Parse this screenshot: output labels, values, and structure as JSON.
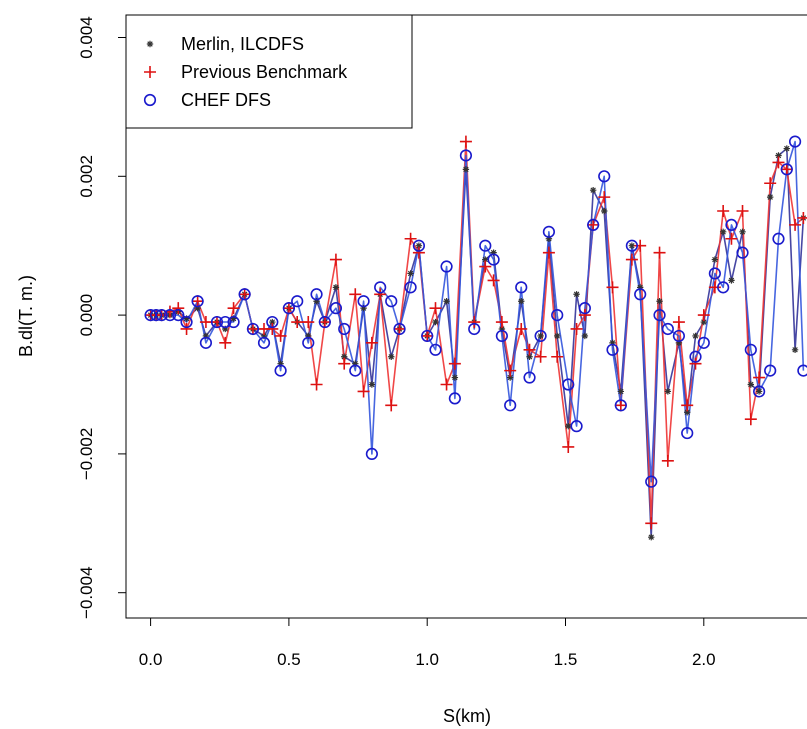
{
  "chart_data": {
    "type": "line",
    "xlabel": "S(km)",
    "ylabel": "B.dl(T. m.)",
    "xlim": [
      -0.05,
      2.37
    ],
    "ylim": [
      -0.0043,
      0.0042
    ],
    "x_ticks": [
      "0.0",
      "0.5",
      "1.0",
      "1.5",
      "2.0"
    ],
    "x_tick_values": [
      0.0,
      0.5,
      1.0,
      1.5,
      2.0
    ],
    "y_ticks": [
      "0.004",
      "0.002",
      "0.000",
      "−0.002",
      "−0.004"
    ],
    "y_tick_values": [
      0.004,
      0.002,
      0.0,
      -0.002,
      -0.004
    ],
    "legend_position": "top-left",
    "series": [
      {
        "name": "Merlin, ILCDFS",
        "marker": "star",
        "color": "#333333",
        "line_color": "#333399",
        "x": [
          0.0,
          0.02,
          0.04,
          0.07,
          0.1,
          0.13,
          0.17,
          0.2,
          0.24,
          0.27,
          0.3,
          0.34,
          0.37,
          0.41,
          0.44,
          0.47,
          0.5,
          0.53,
          0.57,
          0.6,
          0.63,
          0.67,
          0.7,
          0.74,
          0.77,
          0.8,
          0.83,
          0.87,
          0.9,
          0.94,
          0.97,
          1.0,
          1.03,
          1.07,
          1.1,
          1.14,
          1.17,
          1.21,
          1.24,
          1.27,
          1.3,
          1.34,
          1.37,
          1.41,
          1.44,
          1.47,
          1.51,
          1.54,
          1.57,
          1.6,
          1.64,
          1.67,
          1.7,
          1.74,
          1.77,
          1.81,
          1.84,
          1.87,
          1.91,
          1.94,
          1.97,
          2.0,
          2.04,
          2.07,
          2.1,
          2.14,
          2.17,
          2.2,
          2.24,
          2.27,
          2.3,
          2.33,
          2.36
        ],
        "y": [
          0.0,
          0.0,
          0.0,
          0.0,
          5e-05,
          -5e-05,
          0.0001,
          -0.0003,
          -0.0001,
          -0.0002,
          -5e-05,
          0.0003,
          -0.0002,
          -0.0003,
          -0.0001,
          -0.0007,
          0.0001,
          -0.0001,
          -0.0003,
          0.0002,
          -0.0001,
          0.0004,
          -0.0006,
          -0.0007,
          0.0001,
          -0.001,
          0.0003,
          -0.0006,
          -0.0002,
          0.0006,
          0.001,
          -0.0003,
          -0.0001,
          0.0002,
          -0.0009,
          0.0021,
          -0.0001,
          0.0008,
          0.0009,
          -0.0002,
          -0.0009,
          0.0002,
          -0.0006,
          -0.0003,
          0.0011,
          -0.0003,
          -0.0016,
          0.0003,
          -0.0003,
          0.0018,
          0.0015,
          -0.0004,
          -0.0011,
          0.001,
          0.0004,
          -0.0032,
          0.0002,
          -0.0011,
          -0.0004,
          -0.0014,
          -0.0003,
          -0.0001,
          0.0008,
          0.0012,
          0.0005,
          0.0012,
          -0.001,
          -0.0011,
          0.0017,
          0.0023,
          0.0024,
          -0.0005,
          0.0014
        ]
      },
      {
        "name": "Previous Benchmark",
        "marker": "plus",
        "color": "#dd1111",
        "line_color": "#ee3333",
        "x": [
          0.0,
          0.02,
          0.04,
          0.07,
          0.1,
          0.13,
          0.17,
          0.2,
          0.24,
          0.27,
          0.3,
          0.34,
          0.37,
          0.41,
          0.44,
          0.47,
          0.5,
          0.53,
          0.57,
          0.6,
          0.63,
          0.67,
          0.7,
          0.74,
          0.77,
          0.8,
          0.83,
          0.87,
          0.9,
          0.94,
          0.97,
          1.0,
          1.03,
          1.07,
          1.1,
          1.14,
          1.17,
          1.21,
          1.24,
          1.27,
          1.3,
          1.34,
          1.37,
          1.41,
          1.44,
          1.47,
          1.51,
          1.54,
          1.57,
          1.6,
          1.64,
          1.67,
          1.7,
          1.74,
          1.77,
          1.81,
          1.84,
          1.87,
          1.91,
          1.94,
          1.97,
          2.0,
          2.04,
          2.07,
          2.1,
          2.14,
          2.17,
          2.2,
          2.24,
          2.27,
          2.3,
          2.33,
          2.36
        ],
        "y": [
          0.0,
          0.0,
          0.0,
          5e-05,
          0.0001,
          -0.0002,
          0.0002,
          -0.0001,
          -0.0001,
          -0.0004,
          0.0001,
          0.0003,
          -0.0002,
          -0.0002,
          -0.0002,
          -0.0003,
          0.0001,
          -0.0001,
          -0.0001,
          -0.001,
          -0.0001,
          0.0008,
          -0.0007,
          0.0003,
          -0.0011,
          -0.0004,
          0.0003,
          -0.0013,
          -0.0002,
          0.0011,
          0.0009,
          -0.0003,
          0.0001,
          -0.001,
          -0.0007,
          0.0025,
          -0.0001,
          0.0007,
          0.0005,
          -0.0001,
          -0.0008,
          -0.0002,
          -0.0005,
          -0.0006,
          0.0009,
          -0.0006,
          -0.0019,
          -0.0002,
          0.0,
          0.0013,
          0.0017,
          0.0004,
          -0.0013,
          0.0008,
          0.001,
          -0.003,
          0.0009,
          -0.0021,
          -0.0001,
          -0.0013,
          -0.0007,
          0.0,
          0.0004,
          0.0015,
          0.0011,
          0.0015,
          -0.0015,
          -0.0009,
          0.0019,
          0.0022,
          0.0021,
          0.0013,
          0.0014
        ]
      },
      {
        "name": "CHEF DFS",
        "marker": "circle",
        "color": "#1a1acc",
        "line_color": "#3355dd",
        "x": [
          0.0,
          0.02,
          0.04,
          0.07,
          0.1,
          0.13,
          0.17,
          0.2,
          0.24,
          0.27,
          0.3,
          0.34,
          0.37,
          0.41,
          0.44,
          0.47,
          0.5,
          0.53,
          0.57,
          0.6,
          0.63,
          0.67,
          0.7,
          0.74,
          0.77,
          0.8,
          0.83,
          0.87,
          0.9,
          0.94,
          0.97,
          1.0,
          1.03,
          1.07,
          1.1,
          1.14,
          1.17,
          1.21,
          1.24,
          1.27,
          1.3,
          1.34,
          1.37,
          1.41,
          1.44,
          1.47,
          1.51,
          1.54,
          1.57,
          1.6,
          1.64,
          1.67,
          1.7,
          1.74,
          1.77,
          1.81,
          1.84,
          1.87,
          1.91,
          1.94,
          1.97,
          2.0,
          2.04,
          2.07,
          2.1,
          2.14,
          2.17,
          2.2,
          2.24,
          2.27,
          2.3,
          2.33,
          2.36
        ],
        "y": [
          0.0,
          0.0,
          0.0,
          0.0,
          0.0,
          -0.0001,
          0.0002,
          -0.0004,
          -0.0001,
          -0.0001,
          -0.0001,
          0.0003,
          -0.0002,
          -0.0004,
          -0.0001,
          -0.0008,
          0.0001,
          0.0002,
          -0.0004,
          0.0003,
          -0.0001,
          0.0001,
          -0.0002,
          -0.0008,
          0.0002,
          -0.002,
          0.0004,
          0.0002,
          -0.0002,
          0.0004,
          0.001,
          -0.0003,
          -0.0005,
          0.0007,
          -0.0012,
          0.0023,
          -0.0002,
          0.001,
          0.0008,
          -0.0003,
          -0.0013,
          0.0004,
          -0.0009,
          -0.0003,
          0.0012,
          0.0,
          -0.001,
          -0.0016,
          0.0001,
          0.0013,
          0.002,
          -0.0005,
          -0.0013,
          0.001,
          0.0003,
          -0.0024,
          0.0,
          -0.0002,
          -0.0003,
          -0.0017,
          -0.0006,
          -0.0004,
          0.0006,
          0.0004,
          0.0013,
          0.0009,
          -0.0005,
          -0.0011,
          -0.0008,
          0.0011,
          0.0021,
          0.0025,
          -0.0008
        ]
      }
    ]
  }
}
